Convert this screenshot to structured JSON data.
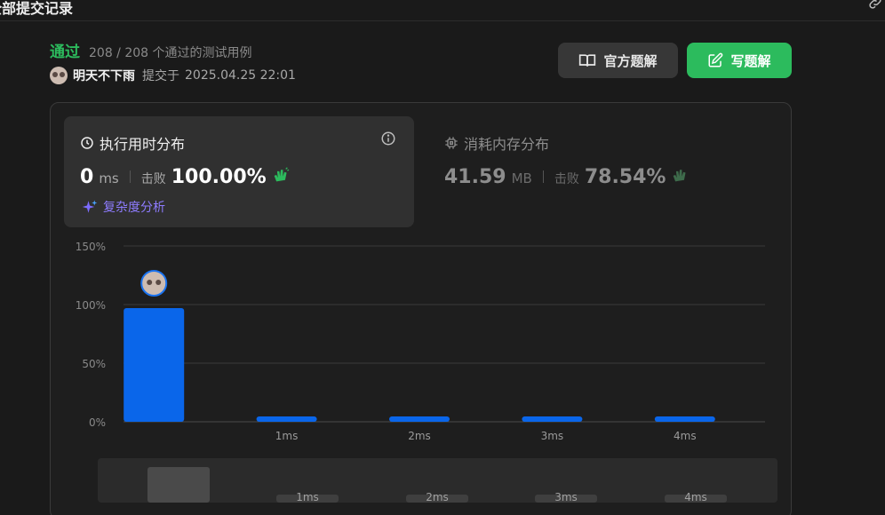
{
  "header": {
    "title": "全部提交记录",
    "link_icon": "link-icon"
  },
  "result": {
    "status": "通过",
    "cases": "208 / 208 个通过的测试用例",
    "user_name": "明天不下雨",
    "submit_prefix": "提交于",
    "submit_time": "2025.04.25 22:01"
  },
  "buttons": {
    "official": "官方题解",
    "write": "写题解"
  },
  "runtime": {
    "title": "执行用时分布",
    "value": "0",
    "unit": "ms",
    "beat_label": "击败",
    "beat_pct": "100.00%",
    "complexity": "复杂度分析"
  },
  "memory": {
    "title": "消耗内存分布",
    "value": "41.59",
    "unit": "MB",
    "beat_label": "击败",
    "beat_pct": "78.54%"
  },
  "colors": {
    "accent_green": "#2cbb5d",
    "bar_blue": "#0a66ea",
    "purple": "#8e7cff"
  },
  "chart_data": {
    "type": "bar",
    "categories": [
      "",
      "1ms",
      "2ms",
      "3ms",
      "4ms"
    ],
    "values": [
      97,
      2,
      2,
      2,
      2
    ],
    "ylim": [
      0,
      150
    ],
    "yticks": [
      "0%",
      "50%",
      "100%",
      "150%"
    ],
    "highlight_index": 0,
    "grid": true
  },
  "minimap": {
    "labels": [
      "1ms",
      "2ms",
      "3ms",
      "4ms"
    ]
  }
}
